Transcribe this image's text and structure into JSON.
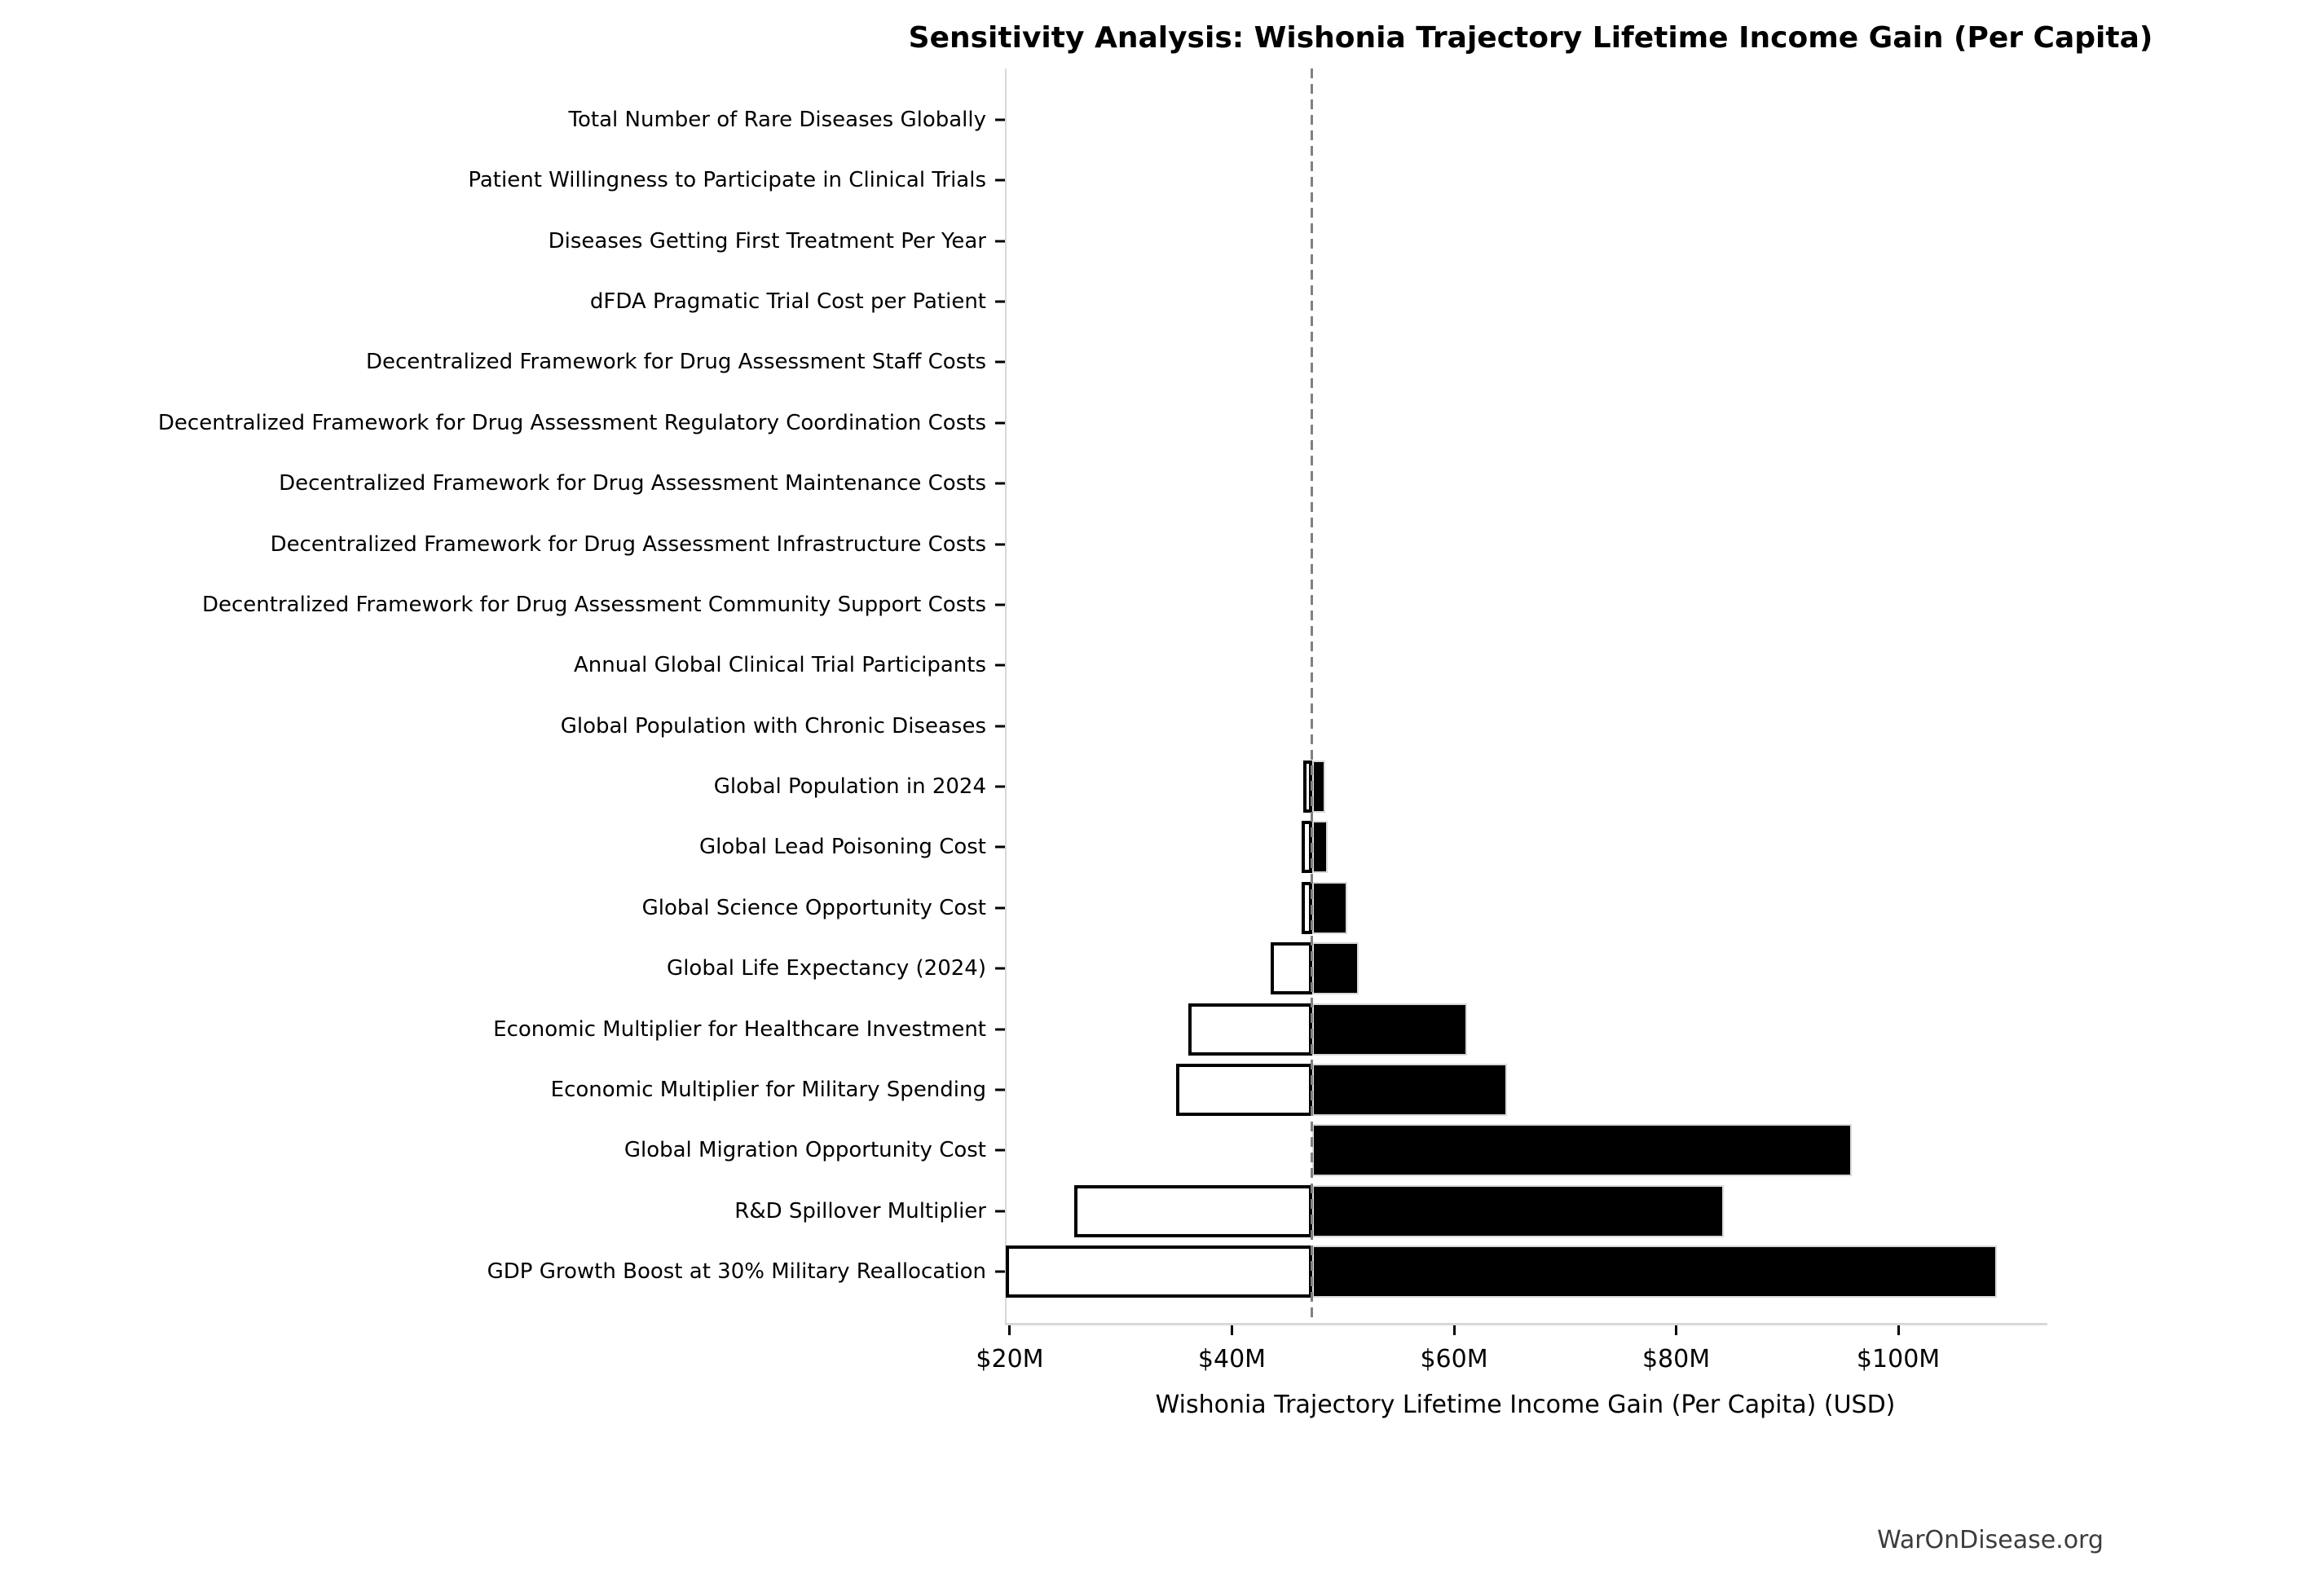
{
  "title": "Sensitivity Analysis: Wishonia Trajectory Lifetime Income Gain (Per Capita)",
  "footer": "WarOnDisease.org",
  "chart_data": {
    "type": "bar",
    "subtype": "tornado-sensitivity",
    "title": "Sensitivity Analysis: Wishonia Trajectory Lifetime Income Gain (Per Capita)",
    "xlabel": "Wishonia Trajectory Lifetime Income Gain (Per Capita) (USD)",
    "ylabel": "",
    "units": "millions USD",
    "xlim": [
      19.56,
      113.28
    ],
    "baseline": 47.2,
    "grid": false,
    "legend": "none",
    "x_ticks": [
      {
        "value": 20,
        "label": "$20M"
      },
      {
        "value": 40,
        "label": "$40M"
      },
      {
        "value": 60,
        "label": "$60M"
      },
      {
        "value": 80,
        "label": "$80M"
      },
      {
        "value": 100,
        "label": "$100M"
      }
    ],
    "parameters": [
      {
        "label": "Total Number of Rare Diseases Globally",
        "low": 47.2,
        "high": 47.2
      },
      {
        "label": "Patient Willingness to Participate in Clinical Trials",
        "low": 47.2,
        "high": 47.2
      },
      {
        "label": "Diseases Getting First Treatment Per Year",
        "low": 47.2,
        "high": 47.2
      },
      {
        "label": "dFDA Pragmatic Trial Cost per Patient",
        "low": 47.2,
        "high": 47.2
      },
      {
        "label": "Decentralized Framework for Drug Assessment Staff Costs",
        "low": 47.2,
        "high": 47.2
      },
      {
        "label": "Decentralized Framework for Drug Assessment Regulatory Coordination Costs",
        "low": 47.2,
        "high": 47.2
      },
      {
        "label": "Decentralized Framework for Drug Assessment Maintenance Costs",
        "low": 47.2,
        "high": 47.2
      },
      {
        "label": "Decentralized Framework for Drug Assessment Infrastructure Costs",
        "low": 47.2,
        "high": 47.2
      },
      {
        "label": "Decentralized Framework for Drug Assessment Community Support Costs",
        "low": 47.2,
        "high": 47.2
      },
      {
        "label": "Annual Global Clinical Trial Participants",
        "low": 47.2,
        "high": 47.2
      },
      {
        "label": "Global Population with Chronic Diseases",
        "low": 47.2,
        "high": 47.2
      },
      {
        "label": "Global Population in 2024",
        "low": 46.4,
        "high": 48.4
      },
      {
        "label": "Global Lead Poisoning Cost",
        "low": 46.3,
        "high": 48.6
      },
      {
        "label": "Global Science Opportunity Cost",
        "low": 46.3,
        "high": 50.4
      },
      {
        "label": "Global Life Expectancy (2024)",
        "low": 43.5,
        "high": 51.4
      },
      {
        "label": "Economic Multiplier for Healthcare Investment",
        "low": 36.1,
        "high": 61.2
      },
      {
        "label": "Economic Multiplier for Military Spending",
        "low": 35.0,
        "high": 64.8
      },
      {
        "label": "Global Migration Opportunity Cost",
        "low": 47.2,
        "high": 95.8
      },
      {
        "label": "R&D Spillover Multiplier",
        "low": 25.8,
        "high": 84.3
      },
      {
        "label": "GDP Growth Boost at 30% Military Reallocation",
        "low": 19.6,
        "high": 108.9
      }
    ],
    "colors": {
      "high_bar_fill": "#000000",
      "high_bar_edge": "#d9d9d9",
      "low_bar_fill": "#ffffff",
      "low_bar_edge": "#000000",
      "baseline_line": "#808080",
      "spine": "#d8d8d8",
      "text": "#000000",
      "footer_text": "#3c3c3c"
    }
  }
}
